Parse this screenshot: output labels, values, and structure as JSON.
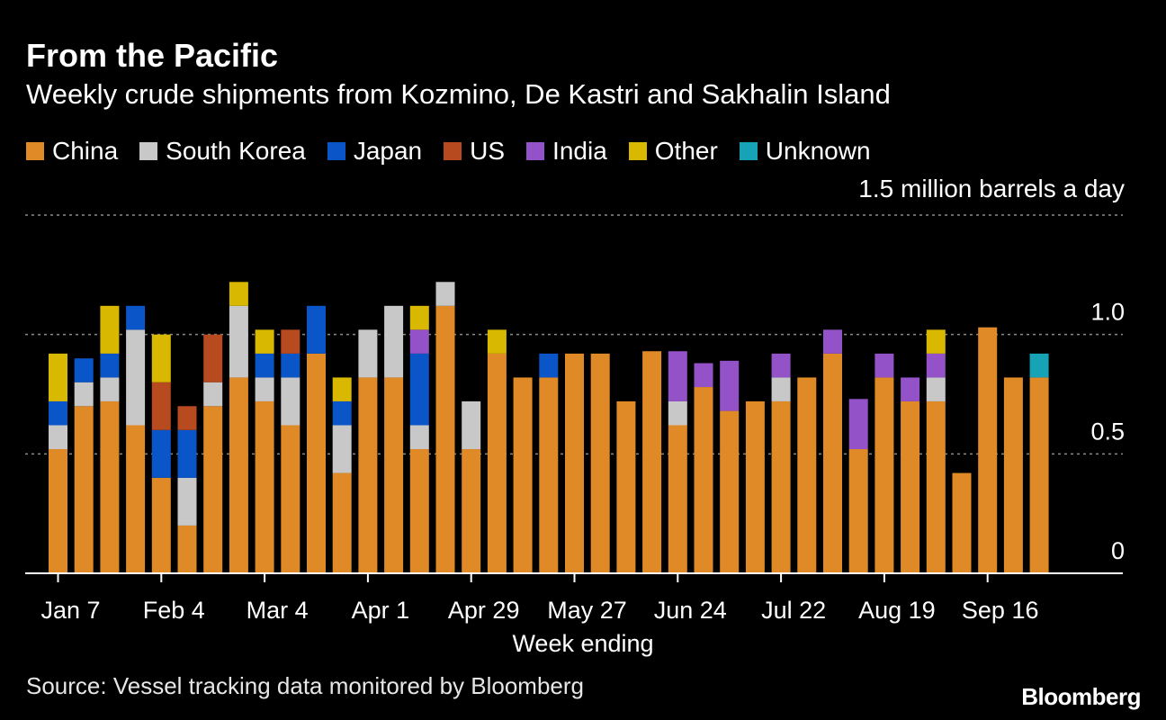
{
  "header": {
    "title": "From the Pacific",
    "subtitle": "Weekly crude shipments from Kozmino, De Kastri and Sakhalin Island"
  },
  "legend": [
    {
      "label": "China",
      "color": "#e08a27"
    },
    {
      "label": "South Korea",
      "color": "#c8c8c8"
    },
    {
      "label": "Japan",
      "color": "#0a56c8"
    },
    {
      "label": "US",
      "color": "#b74a1f"
    },
    {
      "label": "India",
      "color": "#9352c7"
    },
    {
      "label": "Other",
      "color": "#d8b800"
    },
    {
      "label": "Unknown",
      "color": "#16a3b5"
    }
  ],
  "footer": {
    "source": "Source: Vessel tracking data monitored by Bloomberg",
    "logo": "Bloomberg"
  },
  "chart_data": {
    "type": "bar",
    "stacked": true,
    "unit_label": "1.5 million barrels a day",
    "xlabel": "Week ending",
    "ylabel": "",
    "ylim": [
      0,
      1.5
    ],
    "yticks": [
      {
        "value": 0,
        "label": "0"
      },
      {
        "value": 0.5,
        "label": "0.5"
      },
      {
        "value": 1.0,
        "label": "1.0"
      },
      {
        "value": 1.5,
        "label": ""
      }
    ],
    "xticks": [
      {
        "index": 0,
        "label": "Jan 7"
      },
      {
        "index": 4,
        "label": "Feb 4"
      },
      {
        "index": 8,
        "label": "Mar 4"
      },
      {
        "index": 12,
        "label": "Apr 1"
      },
      {
        "index": 16,
        "label": "Apr 29"
      },
      {
        "index": 20,
        "label": "May 27"
      },
      {
        "index": 24,
        "label": "Jun 24"
      },
      {
        "index": 28,
        "label": "Jul 22"
      },
      {
        "index": 32,
        "label": "Aug 19"
      },
      {
        "index": 36,
        "label": "Sep 16"
      }
    ],
    "series": [
      {
        "name": "China",
        "values": [
          0.52,
          0.7,
          0.72,
          0.62,
          0.4,
          0.2,
          0.7,
          0.82,
          0.72,
          0.62,
          0.92,
          0.42,
          0.82,
          0.82,
          0.52,
          1.12,
          0.52,
          0.92,
          0.82,
          0.82,
          0.92,
          0.92,
          0.72,
          0.93,
          0.62,
          0.78,
          0.68,
          0.72,
          0.72,
          0.82,
          0.92,
          0.52,
          0.82,
          0.72,
          0.72,
          0.42,
          1.03,
          0.82,
          0.82
        ]
      },
      {
        "name": "South Korea",
        "values": [
          0.1,
          0.1,
          0.1,
          0.4,
          0,
          0.2,
          0.1,
          0.3,
          0.1,
          0.2,
          0,
          0.2,
          0.2,
          0.3,
          0.1,
          0.1,
          0.2,
          0,
          0,
          0,
          0,
          0,
          0,
          0,
          0.1,
          0,
          0,
          0,
          0.1,
          0,
          0,
          0,
          0,
          0,
          0.1,
          0,
          0,
          0,
          0
        ]
      },
      {
        "name": "Japan",
        "values": [
          0.1,
          0.1,
          0.1,
          0.1,
          0.2,
          0.2,
          0,
          0,
          0.1,
          0.1,
          0.2,
          0.1,
          0,
          0,
          0.3,
          0,
          0,
          0,
          0,
          0.1,
          0,
          0,
          0,
          0,
          0,
          0,
          0,
          0,
          0,
          0,
          0,
          0,
          0,
          0,
          0,
          0,
          0,
          0,
          0
        ]
      },
      {
        "name": "US",
        "values": [
          0,
          0,
          0,
          0,
          0.2,
          0.1,
          0.2,
          0,
          0,
          0.1,
          0,
          0,
          0,
          0,
          0,
          0,
          0,
          0,
          0,
          0,
          0,
          0,
          0,
          0,
          0,
          0,
          0,
          0,
          0,
          0,
          0,
          0,
          0,
          0,
          0,
          0,
          0,
          0,
          0
        ]
      },
      {
        "name": "India",
        "values": [
          0,
          0,
          0,
          0,
          0,
          0,
          0,
          0,
          0,
          0,
          0,
          0,
          0,
          0,
          0.1,
          0,
          0,
          0,
          0,
          0,
          0,
          0,
          0,
          0,
          0.21,
          0.1,
          0.21,
          0,
          0.1,
          0,
          0.1,
          0.21,
          0.1,
          0.1,
          0.1,
          0,
          0,
          0,
          0
        ]
      },
      {
        "name": "Other",
        "values": [
          0.2,
          0,
          0.2,
          0,
          0.2,
          0,
          0,
          0.1,
          0.1,
          0,
          0,
          0.1,
          0,
          0,
          0.1,
          0,
          0,
          0.1,
          0,
          0,
          0,
          0,
          0,
          0,
          0,
          0,
          0,
          0,
          0,
          0,
          0,
          0,
          0,
          0,
          0.1,
          0,
          0,
          0,
          0
        ]
      },
      {
        "name": "Unknown",
        "values": [
          0,
          0,
          0,
          0,
          0,
          0,
          0,
          0,
          0,
          0,
          0,
          0,
          0,
          0,
          0,
          0,
          0,
          0,
          0,
          0,
          0,
          0,
          0,
          0,
          0,
          0,
          0,
          0,
          0,
          0,
          0,
          0,
          0,
          0,
          0,
          0,
          0,
          0,
          0.1
        ]
      }
    ]
  }
}
